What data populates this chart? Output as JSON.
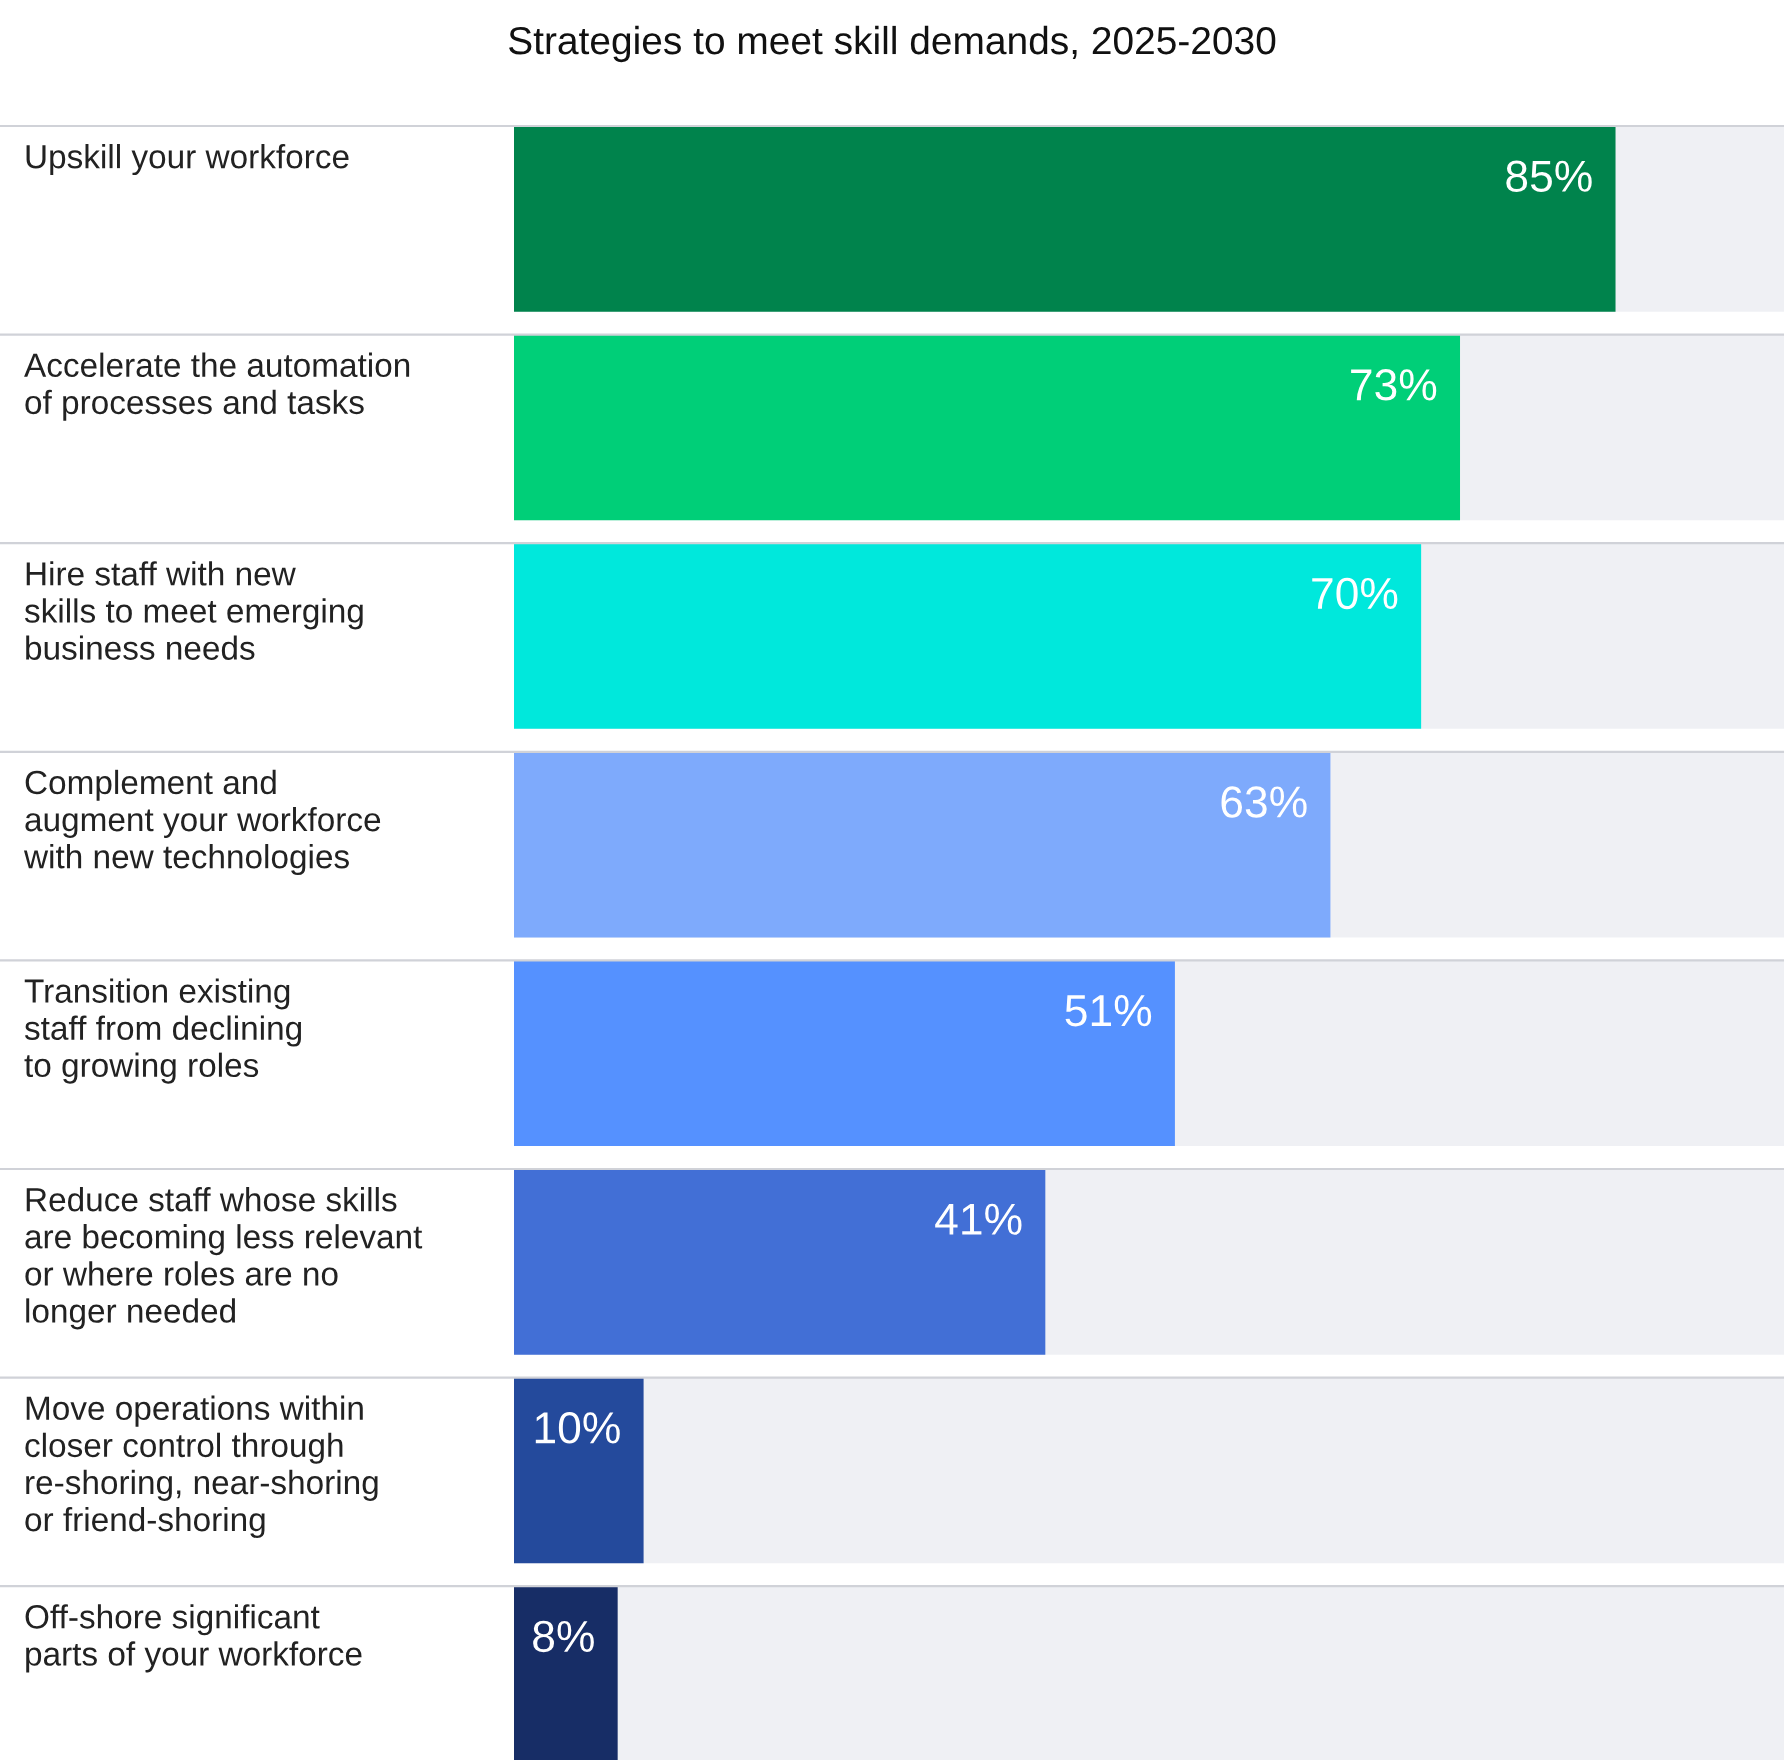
{
  "chart_data": {
    "type": "bar",
    "orientation": "horizontal",
    "title": "Strategies to meet skill demands, 2025-2030",
    "categories": [
      "Upskill your workforce",
      "Accelerate the automation\nof processes and tasks",
      "Hire staff with new\nskills to meet emerging\nbusiness needs",
      "Complement and\naugment your workforce\nwith new technologies",
      "Transition existing\nstaff from declining\nto growing roles",
      "Reduce staff whose skills\nare becoming less relevant\nor where roles are no\nlonger needed",
      "Move operations within\ncloser control through\nre-shoring, near-shoring\nor friend-shoring",
      "Off-shore significant\nparts of your workforce"
    ],
    "values": [
      85,
      73,
      70,
      63,
      51,
      41,
      10,
      8
    ],
    "value_labels": [
      "85%",
      "73%",
      "70%",
      "63%",
      "51%",
      "41%",
      "10%",
      "8%"
    ],
    "colors": [
      "#00834c",
      "#00cf78",
      "#00e8dc",
      "#7eaafc",
      "#5591ff",
      "#426fd6",
      "#244a9c",
      "#172d66"
    ],
    "xlim": [
      0,
      98
    ],
    "legend": false
  }
}
